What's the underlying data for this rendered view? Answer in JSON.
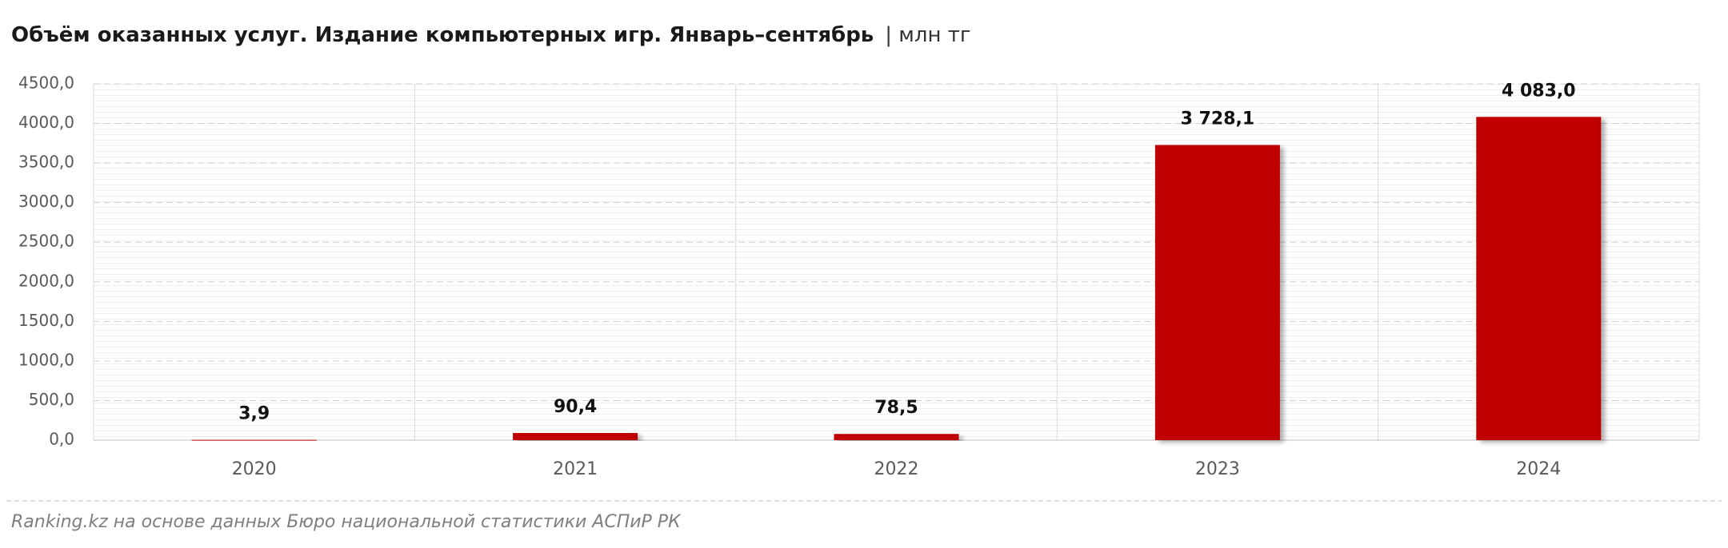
{
  "chart_data": {
    "type": "bar",
    "title": "Объём оказанных услуг. Издание компьютерных игр. Январь–сентябрь",
    "subtitle": "| млн тг",
    "source": "Ranking.kz на основе данных Бюро национальной статистики АСПиР РК",
    "categories": [
      "2020",
      "2021",
      "2022",
      "2023",
      "2024"
    ],
    "values": [
      3.9,
      90.4,
      78.5,
      3728.1,
      4083.0
    ],
    "value_labels": [
      "3,9",
      "90,4",
      "78,5",
      "3 728,1",
      "4 083,0"
    ],
    "color": "#c00000",
    "ylim": [
      0,
      4500
    ],
    "yticks": [
      {
        "value": 0,
        "label": "0,0"
      },
      {
        "value": 500,
        "label": "500,0"
      },
      {
        "value": 1000,
        "label": "1000,0"
      },
      {
        "value": 1500,
        "label": "1500,0"
      },
      {
        "value": 2000,
        "label": "2000,0"
      },
      {
        "value": 2500,
        "label": "2500,0"
      },
      {
        "value": 3000,
        "label": "3000,0"
      },
      {
        "value": 3500,
        "label": "3500,0"
      },
      {
        "value": 4000,
        "label": "4000,0"
      },
      {
        "value": 4500,
        "label": "4500,0"
      }
    ],
    "grid": true
  }
}
